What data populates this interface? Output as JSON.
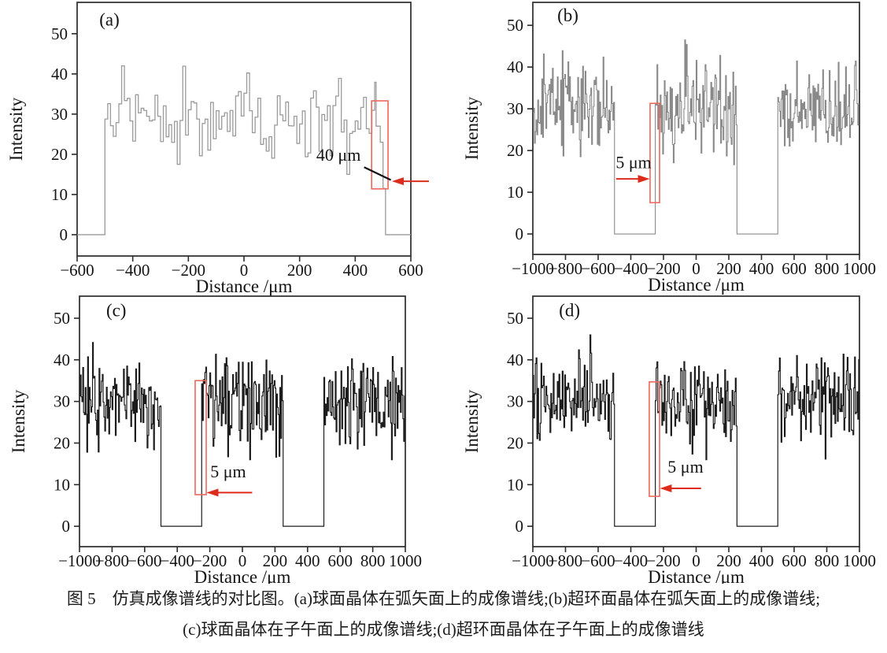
{
  "figure": {
    "caption_line1": "图 5　仿真成像谱线的对比图。(a)球面晶体在弧矢面上的成像谱线;(b)超环面晶体在弧矢面上的成像谱线;",
    "caption_line2": "(c)球面晶体在子午面上的成像谱线;(d)超环面晶体在子午面上的成像谱线"
  },
  "colors": {
    "background": "#ffffff",
    "axis": "#2b2b2b",
    "text": "#141414",
    "red_arrow": "#dd2b1c",
    "red_rect": "#ec685c"
  },
  "chart_data": [
    {
      "id": "a",
      "panel_label": "(a)",
      "type": "line",
      "xlabel": "Distance /μm",
      "ylabel": "Intensity",
      "xlim": [
        -600,
        600
      ],
      "ylim": [
        -5.3,
        57.8
      ],
      "xticks": [
        -600,
        -400,
        -200,
        0,
        200,
        400,
        600
      ],
      "yticks": [
        0,
        10,
        20,
        30,
        40,
        50
      ],
      "grid": false,
      "line_color": "#9b9b9b",
      "line_width": 1.3,
      "sample_step_um": 10,
      "seed": 7,
      "noise_stats": {
        "mean": 29,
        "sd": 5.2,
        "min": 15,
        "max": 42
      },
      "segments": [
        {
          "type": "flat",
          "x0": -600,
          "x1": -500,
          "value": 0
        },
        {
          "type": "noise",
          "x0": -500,
          "x1": 475
        },
        {
          "type": "flat",
          "x0": 475,
          "x1": 490,
          "value": 27
        },
        {
          "type": "flat",
          "x0": 490,
          "x1": 500,
          "value": 23
        },
        {
          "type": "flat",
          "x0": 500,
          "x1": 509,
          "value": 11.5
        },
        {
          "type": "flat",
          "x0": 509,
          "x1": 600,
          "value": 0
        }
      ],
      "panel_label_pos": {
        "x": -520,
        "y": 52
      },
      "annotation": {
        "label": "40 μm",
        "label_pos": {
          "x": 340,
          "y": 18.4
        },
        "rect": {
          "x0": 459,
          "x1": 518,
          "y0": 11.4,
          "y1": 33.3
        },
        "black_arrow": {
          "x1": 432,
          "y1": 16.8,
          "x2": 528,
          "y2": 13.6
        },
        "red_arrow": {
          "tail_x": 665,
          "tip_x": 532,
          "y": 13.3
        }
      }
    },
    {
      "id": "b",
      "panel_label": "(b)",
      "type": "line",
      "xlabel": "Distance /μm",
      "ylabel": "Intensity",
      "xlim": [
        -1000,
        1000
      ],
      "ylim": [
        -4.9,
        55.5
      ],
      "xticks": [
        -1000,
        -800,
        -600,
        -400,
        -200,
        0,
        200,
        400,
        600,
        800,
        1000
      ],
      "yticks": [
        0,
        10,
        20,
        30,
        40,
        50
      ],
      "grid": false,
      "line_color": "#8a8a8a",
      "line_width": 1.1,
      "sample_step_um": 5,
      "seed": 13,
      "noise_stats": {
        "mean": 30.5,
        "sd": 5.4,
        "min": 16,
        "max": 48
      },
      "segments": [
        {
          "type": "noise",
          "x0": -1000,
          "x1": -500
        },
        {
          "type": "flat",
          "x0": -500,
          "x1": -250,
          "value": 0
        },
        {
          "type": "noise",
          "x0": -250,
          "x1": 250
        },
        {
          "type": "flat",
          "x0": 250,
          "x1": 500,
          "value": 0
        },
        {
          "type": "noise",
          "x0": 500,
          "x1": 1000
        }
      ],
      "panel_label_pos": {
        "x": -850,
        "y": 51
      },
      "annotation": {
        "label": "5 μm",
        "label_pos": {
          "x": -383,
          "y": 15.8
        },
        "rect": {
          "x0": -282,
          "x1": -224,
          "y0": 7.5,
          "y1": 31.3
        },
        "red_arrow": {
          "tail_x": -490,
          "tip_x": -284,
          "y": 13.2
        }
      }
    },
    {
      "id": "c",
      "panel_label": "(c)",
      "type": "line",
      "xlabel": "Distance /μm",
      "ylabel": "Intensity",
      "xlim": [
        -1000,
        1000
      ],
      "ylim": [
        -4.9,
        55.3
      ],
      "xticks": [
        -1000,
        -800,
        -600,
        -400,
        -200,
        0,
        200,
        400,
        600,
        800,
        1000
      ],
      "yticks": [
        0,
        10,
        20,
        30,
        40,
        50
      ],
      "grid": false,
      "line_color": "#1d1d1d",
      "line_width": 1.2,
      "sample_step_um": 5,
      "seed": 23,
      "noise_stats": {
        "mean": 30,
        "sd": 5.6,
        "min": 16,
        "max": 48
      },
      "segments": [
        {
          "type": "noise",
          "x0": -1000,
          "x1": -500
        },
        {
          "type": "flat",
          "x0": -500,
          "x1": -250,
          "value": 0
        },
        {
          "type": "noise",
          "x0": -250,
          "x1": 250
        },
        {
          "type": "flat",
          "x0": 250,
          "x1": 500,
          "value": 0
        },
        {
          "type": "noise",
          "x0": 500,
          "x1": 1000
        }
      ],
      "panel_label_pos": {
        "x": -836,
        "y": 50.5
      },
      "annotation": {
        "label": "5 μm",
        "label_pos": {
          "x": -87,
          "y": 11.8
        },
        "rect": {
          "x0": -290,
          "x1": -222,
          "y0": 7.6,
          "y1": 35.0
        },
        "red_arrow": {
          "tail_x": 60,
          "tip_x": -220,
          "y": 8.1
        }
      }
    },
    {
      "id": "d",
      "panel_label": "(d)",
      "type": "line",
      "xlabel": "Distance /μm",
      "ylabel": "Intensity",
      "xlim": [
        -1000,
        1000
      ],
      "ylim": [
        -4.9,
        55.3
      ],
      "xticks": [
        -1000,
        -800,
        -600,
        -400,
        -200,
        0,
        200,
        400,
        600,
        800,
        1000
      ],
      "yticks": [
        0,
        10,
        20,
        30,
        40,
        50
      ],
      "grid": false,
      "line_color": "#1d1d1d",
      "line_width": 1.2,
      "sample_step_um": 5,
      "seed": 31,
      "noise_stats": {
        "mean": 30,
        "sd": 5.6,
        "min": 16,
        "max": 46
      },
      "segments": [
        {
          "type": "noise",
          "x0": -1000,
          "x1": -500
        },
        {
          "type": "flat",
          "x0": -500,
          "x1": -250,
          "value": 0
        },
        {
          "type": "noise",
          "x0": -250,
          "x1": 250
        },
        {
          "type": "flat",
          "x0": 250,
          "x1": 500,
          "value": 0
        },
        {
          "type": "noise",
          "x0": 500,
          "x1": 1000
        }
      ],
      "panel_label_pos": {
        "x": -840,
        "y": 50.5
      },
      "annotation": {
        "label": "5 μm",
        "label_pos": {
          "x": -65,
          "y": 12.9
        },
        "rect": {
          "x0": -287,
          "x1": -224,
          "y0": 7.2,
          "y1": 34.7
        },
        "red_arrow": {
          "tail_x": 30,
          "tip_x": -222,
          "y": 9.1
        }
      }
    }
  ]
}
